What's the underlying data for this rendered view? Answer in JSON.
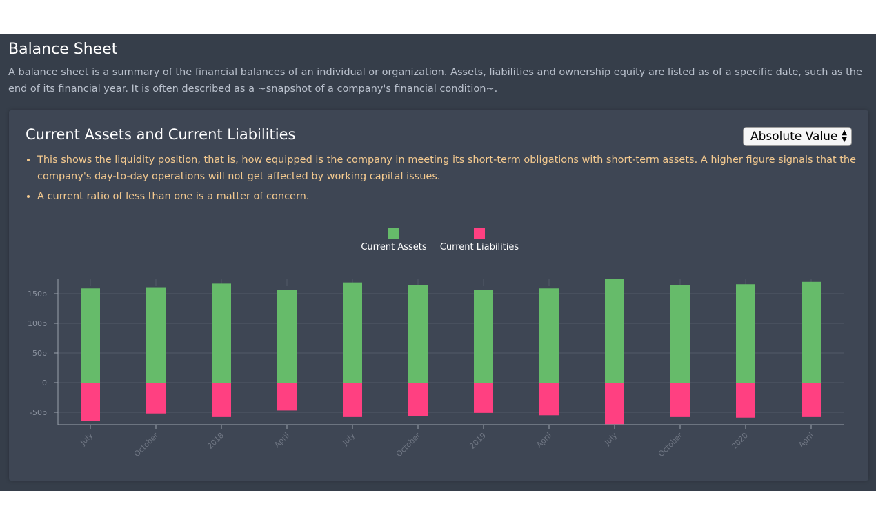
{
  "page": {
    "title": "Balance Sheet",
    "description": "A balance sheet is a summary of the financial balances of an individual or organization. Assets, liabilities and ownership equity are listed as of a specific date, such as the end of its financial year. It is often described as a ~snapshot of a company's financial condition~."
  },
  "card": {
    "title": "Current Assets and Current Liabilities",
    "select": {
      "selected": "Absolute Value"
    },
    "notes": [
      "This shows the liquidity position, that is, how equipped is the company in meeting its short-term obligations with short-term assets. A higher figure signals that the company's day-to-day operations will not get affected by working capital issues.",
      "A current ratio of less than one is a matter of concern."
    ]
  },
  "colors": {
    "assets": "#66bb6a",
    "liabilities": "#ff4081",
    "grid": "#515a68",
    "axis": "#9aa1ad"
  },
  "chart_data": {
    "type": "bar",
    "categories": [
      "July",
      "October",
      "2018",
      "April",
      "July",
      "October",
      "2019",
      "April",
      "July",
      "October",
      "2020",
      "April"
    ],
    "series": [
      {
        "name": "Current Assets",
        "values": [
          159,
          161,
          167,
          156,
          169,
          164,
          156,
          159,
          175,
          165,
          166,
          170
        ]
      },
      {
        "name": "Current Liabilities",
        "values": [
          -65,
          -52,
          -58,
          -47,
          -58,
          -56,
          -51,
          -55,
          -70,
          -58,
          -59,
          -58
        ]
      }
    ],
    "yticks": [
      {
        "value": 150,
        "label": "150b"
      },
      {
        "value": 100,
        "label": "100b"
      },
      {
        "value": 50,
        "label": "50b"
      },
      {
        "value": 0,
        "label": "0"
      },
      {
        "value": -50,
        "label": "-50b"
      }
    ],
    "ylim": [
      -70,
      175
    ],
    "legend": "top-center"
  }
}
